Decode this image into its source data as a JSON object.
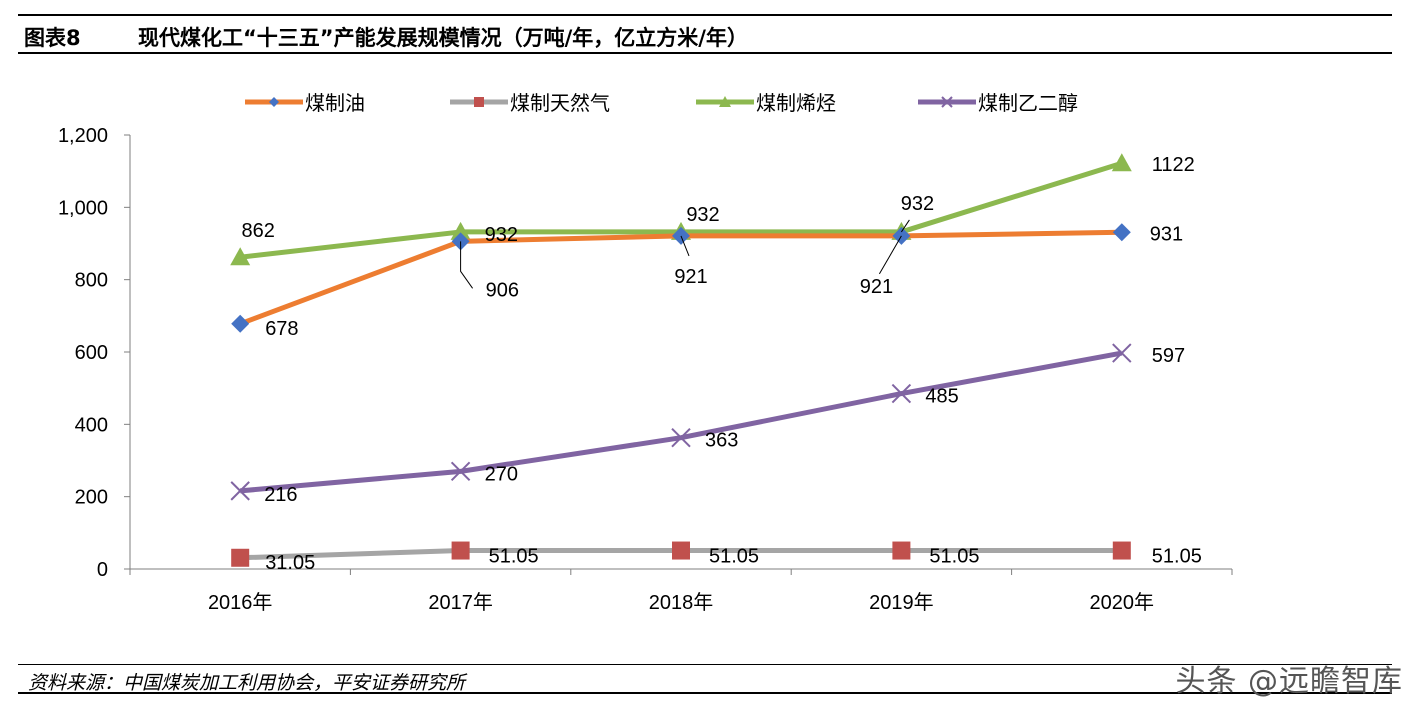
{
  "header": {
    "figure_label": "图表8",
    "title": "现代煤化工“十三五”产能发展规模情况（万吨/年，亿立方米/年）"
  },
  "footer": {
    "source": "资料来源：中国煤炭加工利用协会，平安证券研究所",
    "watermark": "头条 @远瞻智库"
  },
  "chart_data": {
    "type": "line",
    "categories": [
      "2016年",
      "2017年",
      "2018年",
      "2019年",
      "2020年"
    ],
    "ylim": [
      0,
      1200
    ],
    "yticks": [
      0,
      200,
      400,
      600,
      800,
      1000,
      1200
    ],
    "ytick_labels": [
      "0",
      "200",
      "400",
      "600",
      "800",
      "1,000",
      "1,200"
    ],
    "legend_position": "top",
    "grid": false,
    "series": [
      {
        "name": "煤制油",
        "values": [
          678,
          906,
          921,
          921,
          931
        ],
        "labels": [
          "678",
          "906",
          "921",
          "921",
          "931"
        ],
        "color": "#ED7D31",
        "marker_color": "#4472C4",
        "marker": "diamond"
      },
      {
        "name": "煤制天然气",
        "values": [
          31.05,
          51.05,
          51.05,
          51.05,
          51.05
        ],
        "labels": [
          "31.05",
          "51.05",
          "51.05",
          "51.05",
          "51.05"
        ],
        "color": "#A5A5A5",
        "marker_color": "#C0504D",
        "marker": "square"
      },
      {
        "name": "煤制烯烃",
        "values": [
          862,
          932,
          932,
          932,
          1122
        ],
        "labels": [
          "862",
          "932",
          "932",
          "932",
          "1122"
        ],
        "color": "#8CB84F",
        "marker_color": "#8CB84F",
        "marker": "triangle"
      },
      {
        "name": "煤制乙二醇",
        "values": [
          216,
          270,
          363,
          485,
          597
        ],
        "labels": [
          "216",
          "270",
          "363",
          "485",
          "597"
        ],
        "color": "#8064A2",
        "marker_color": "#8064A2",
        "marker": "x"
      }
    ]
  }
}
